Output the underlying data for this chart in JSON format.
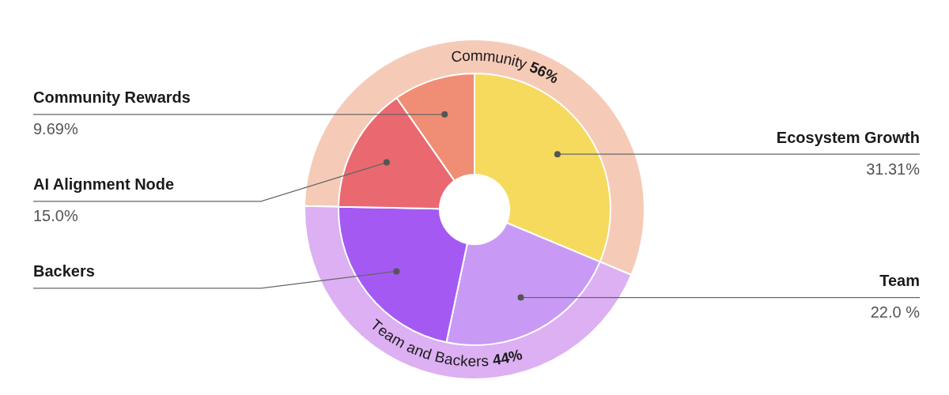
{
  "chart_data": [
    {
      "type": "donut",
      "categories": [
        "Ecosystem Growth",
        "Team",
        "Backers",
        "AI Alignment Node",
        "Community Rewards"
      ],
      "values": [
        31.31,
        22.0,
        22.0,
        15.0,
        9.69
      ],
      "colors": [
        "#f6da5e",
        "#c89af5",
        "#a45af2",
        "#ea6870",
        "#ef8e74"
      ],
      "value_labels": [
        "31.31%",
        "22.0 %",
        null,
        "15.0%",
        "9.69%"
      ]
    },
    {
      "type": "donut",
      "categories": [
        "Community",
        "Team and Backers"
      ],
      "values": [
        56,
        44
      ],
      "colors": [
        "#f5cbb8",
        "#dcb0f2"
      ],
      "value_labels": [
        "56%",
        "44%"
      ]
    }
  ]
}
